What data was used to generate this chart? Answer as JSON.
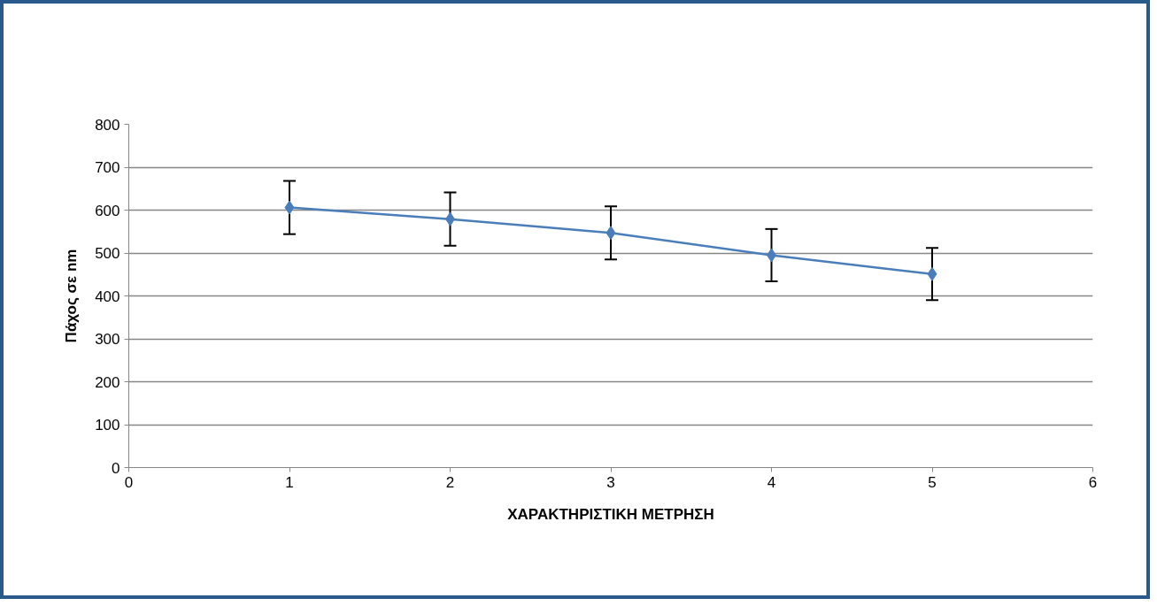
{
  "chart_data": {
    "type": "line",
    "xlabel": "ΧΑΡΑΚΤΗΡΙΣΤΙΚΗ ΜΕΤΡΗΣΗ",
    "ylabel": "Πάχος σε nm",
    "x": [
      1,
      2,
      3,
      4,
      5
    ],
    "series": [
      {
        "color": "#4a7ebb",
        "values": [
          606,
          579,
          547,
          495,
          451
        ],
        "errors": [
          62,
          62,
          62,
          61,
          61
        ]
      }
    ],
    "xlim": [
      0,
      6
    ],
    "xticks": [
      0,
      1,
      2,
      3,
      4,
      5,
      6
    ],
    "ylim": [
      0,
      800
    ],
    "yticks": [
      0,
      100,
      200,
      300,
      400,
      500,
      600,
      700,
      800
    ],
    "grid": "y",
    "marker": "diamond",
    "line_style": "solid"
  }
}
